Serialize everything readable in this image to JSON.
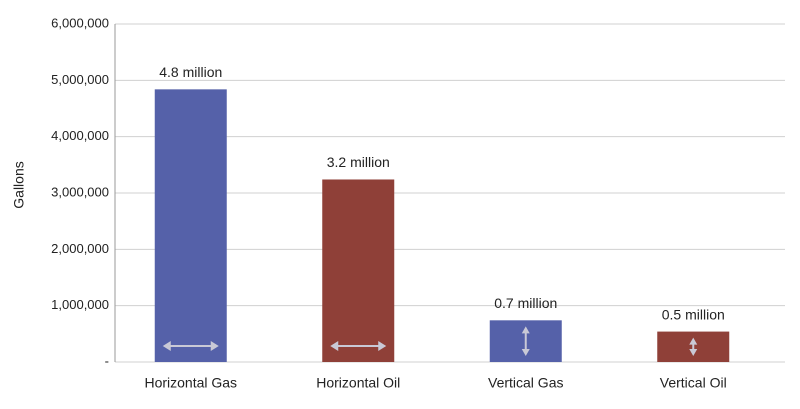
{
  "chart_data": {
    "type": "bar",
    "y_label": "Gallons",
    "categories": [
      "Horizontal Gas",
      "Horizontal Oil",
      "Vertical Gas",
      "Vertical Oil"
    ],
    "values": [
      4840000,
      3240000,
      740000,
      540000
    ],
    "value_labels": [
      "4.8 million",
      "3.2 million",
      "0.7 million",
      "0.5 million"
    ],
    "colors": [
      "#5561a9",
      "#8f4038",
      "#5561a9",
      "#8f4038"
    ],
    "ylim": [
      0,
      6000000
    ],
    "yticks": [
      {
        "value": 0,
        "label": "-"
      },
      {
        "value": 1000000,
        "label": "1,000,000"
      },
      {
        "value": 2000000,
        "label": "2,000,000"
      },
      {
        "value": 3000000,
        "label": "3,000,000"
      },
      {
        "value": 4000000,
        "label": "4,000,000"
      },
      {
        "value": 5000000,
        "label": "5,000,000"
      },
      {
        "value": 6000000,
        "label": "6,000,000"
      }
    ],
    "grid": true
  }
}
